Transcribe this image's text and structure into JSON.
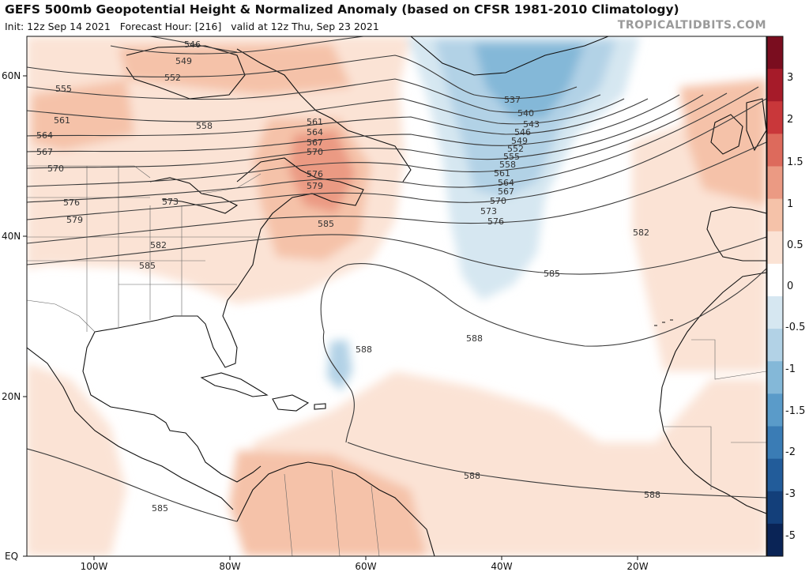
{
  "title": "GEFS 500mb Geopotential Height & Normalized Anomaly (based on CFSR 1981-2010 Climatology)",
  "init_text": "Init: 12z Sep 14 2021",
  "forecast_text": "Forecast Hour: [216]",
  "valid_text": "valid at 12z Thu, Sep 23 2021",
  "brand": "TROPICALTIDBITS.COM",
  "lat_labels": [
    "60N",
    "40N",
    "20N",
    "EQ"
  ],
  "lon_labels": [
    "100W",
    "80W",
    "60W",
    "40W",
    "20W"
  ],
  "colorbar": {
    "ticks": [
      "3",
      "2",
      "1.5",
      "1",
      "0.5",
      "0",
      "-0.5",
      "-1",
      "-1.5",
      "-2",
      "-3",
      "-5"
    ],
    "colors": [
      "#7a0d1f",
      "#a61b29",
      "#c9373a",
      "#dd6a5c",
      "#eb9a83",
      "#f5c2a9",
      "#fbe3d5",
      "#ffffff",
      "#d6e7f1",
      "#b2d2e6",
      "#84b8d8",
      "#5a9bc9",
      "#3a7cb5",
      "#225c9a",
      "#133f7a",
      "#0a2456"
    ]
  },
  "contour_labels": [
    "546",
    "549",
    "552",
    "555",
    "561",
    "564",
    "567",
    "570",
    "558",
    "573",
    "576",
    "579",
    "582",
    "585",
    "561",
    "564",
    "567",
    "570",
    "576",
    "579",
    "585",
    "537",
    "540",
    "543",
    "546",
    "549",
    "552",
    "555",
    "558",
    "561",
    "564",
    "567",
    "570",
    "573",
    "576",
    "582",
    "585",
    "588",
    "588",
    "588",
    "588",
    "585"
  ],
  "colors": {
    "land_outline": "#111111",
    "contour": "#3a3a3a",
    "border": "#555555"
  }
}
